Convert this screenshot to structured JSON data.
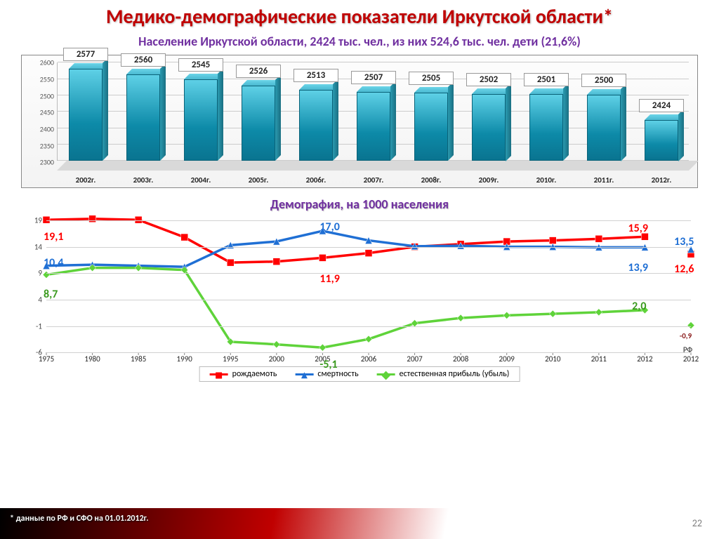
{
  "title": "Медико-демографические показатели Иркутской области*",
  "subtitle": "Население Иркутской области, 2424 тыс. чел., из них 524,6 тыс. чел. дети (21,6%)",
  "bar_chart": {
    "type": "bar3d",
    "categories": [
      "2002г.",
      "2003г.",
      "2004г.",
      "2005г.",
      "2006г.",
      "2007г.",
      "2008г.",
      "2009г.",
      "2010г.",
      "2011г.",
      "2012г."
    ],
    "values": [
      2577,
      2560,
      2545,
      2526,
      2513,
      2507,
      2505,
      2502,
      2501,
      2500,
      2424
    ],
    "ylim": [
      2300,
      2600
    ],
    "ytick_step": 50,
    "bar_fill_top": "#5ed0e6",
    "bar_fill_bottom": "#0a7490",
    "label_bg": "#ffffff",
    "label_border": "#999999",
    "axis_font_size": 11,
    "value_font_size": 13
  },
  "subtitle2": "Демография, на 1000 населения",
  "line_chart": {
    "type": "line",
    "x_categories": [
      "1975",
      "1980",
      "1985",
      "1990",
      "1995",
      "2000",
      "2005",
      "2006",
      "2007",
      "2008",
      "2009",
      "2010",
      "2011",
      "2012",
      "РФ 2012"
    ],
    "ylim": [
      -6,
      19
    ],
    "yticks": [
      -6,
      -1,
      4,
      9,
      14,
      19
    ],
    "series": [
      {
        "name": "рождаемоть",
        "color": "#ff0000",
        "marker": "square",
        "values": [
          19.1,
          19.3,
          19.1,
          15.8,
          11.0,
          11.2,
          11.9,
          12.8,
          14.0,
          14.5,
          15.0,
          15.2,
          15.5,
          15.9,
          12.6
        ]
      },
      {
        "name": "смертность",
        "color": "#1f6fd4",
        "marker": "triangle",
        "values": [
          10.4,
          10.6,
          10.4,
          10.2,
          14.3,
          15.0,
          17.0,
          15.2,
          14.1,
          14.2,
          14.0,
          14.0,
          13.9,
          13.9,
          13.5
        ]
      },
      {
        "name": "естественная прибыль (убыль)",
        "color": "#5fd33a",
        "marker": "diamond",
        "values": [
          8.7,
          10.0,
          10.0,
          9.6,
          -4.0,
          -4.5,
          -5.1,
          -3.5,
          -0.5,
          0.5,
          1.0,
          1.3,
          1.6,
          2.0,
          -0.9
        ]
      }
    ],
    "detached_last_index": 14,
    "annotations": [
      {
        "text": "19,1",
        "color": "#ff0000",
        "x_idx": 0,
        "y": 17.2,
        "fs": 16
      },
      {
        "text": "10,4",
        "color": "#1f6fd4",
        "x_idx": 0,
        "y": 12.2,
        "fs": 16
      },
      {
        "text": "8,7",
        "color": "#3a9a1e",
        "x_idx": 0,
        "y": 6.2,
        "fs": 16
      },
      {
        "text": "17,0",
        "color": "#1f6fd4",
        "x_idx": 6,
        "y": 19.0,
        "fs": 16
      },
      {
        "text": "11,9",
        "color": "#ff0000",
        "x_idx": 6,
        "y": 9.2,
        "fs": 16
      },
      {
        "text": "-5,1",
        "color": "#3a9a1e",
        "x_idx": 6,
        "y": -7.0,
        "fs": 16
      },
      {
        "text": "15,9",
        "color": "#ff0000",
        "x_idx": 13,
        "y": 18.8,
        "fs": 16
      },
      {
        "text": "13,9",
        "color": "#1f6fd4",
        "x_idx": 13,
        "y": 11.3,
        "fs": 16
      },
      {
        "text": "2,0",
        "color": "#3a9a1e",
        "x_idx": 13,
        "y": 4.0,
        "fs": 16
      },
      {
        "text": "13,5",
        "color": "#1f6fd4",
        "x_idx": 14,
        "y": 16.2,
        "fs": 16
      },
      {
        "text": "12,6",
        "color": "#ff0000",
        "x_idx": 14,
        "y": 11.0,
        "fs": 16
      },
      {
        "text": "-0,9",
        "color": "#8a1a1a",
        "x_idx": 14,
        "y": -2.0,
        "fs": 11
      }
    ],
    "line_width": 3.5,
    "marker_size": 10
  },
  "legend": {
    "items": [
      {
        "label": "рождаемоть",
        "color": "#ff0000",
        "marker": "square"
      },
      {
        "label": "смертность",
        "color": "#1f6fd4",
        "marker": "triangle"
      },
      {
        "label": "естественная прибыль (убыль)",
        "color": "#5fd33a",
        "marker": "diamond"
      }
    ]
  },
  "footnote": "* данные по РФ и СФО на 01.01.2012г.",
  "page_number": "22"
}
